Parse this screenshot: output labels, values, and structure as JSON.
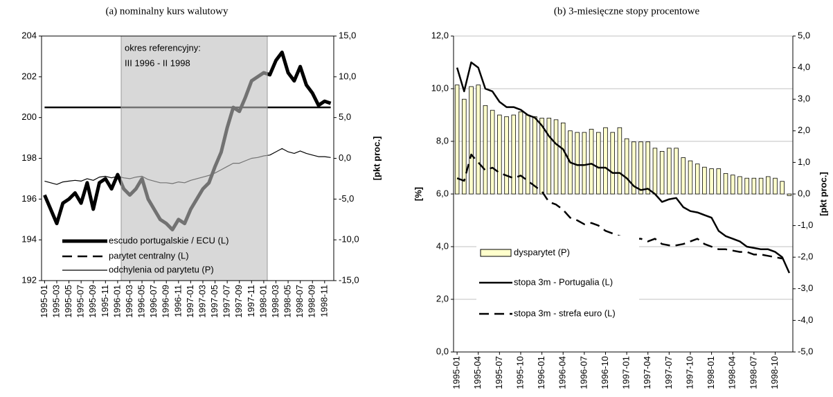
{
  "chart_data": [
    {
      "type": "line",
      "title": "(a) nominalny kurs walutowy",
      "y2_label": "[pkt proc.]",
      "annotations": [
        "okres referencyjny:",
        "III 1996 - II 1998"
      ],
      "categories": [
        "1995-01",
        null,
        "1995-03",
        null,
        "1995-05",
        null,
        "1995-07",
        null,
        "1995-09",
        null,
        "1995-11",
        null,
        "1996-01",
        null,
        "1996-03",
        null,
        "1996-05",
        null,
        "1996-07",
        null,
        "1996-09",
        null,
        "1996-11",
        null,
        "1997-01",
        null,
        "1997-03",
        null,
        "1997-05",
        null,
        "1997-07",
        null,
        "1997-09",
        null,
        "1997-11",
        null,
        "1998-01",
        null,
        "1998-03",
        null,
        "1998-05",
        null,
        "1998-07",
        null,
        "1998-09",
        null,
        "1998-11",
        null
      ],
      "ylim": [
        192,
        204
      ],
      "yticks": [
        192,
        194,
        196,
        198,
        200,
        202,
        204
      ],
      "y2lim": [
        -15,
        15
      ],
      "y2ticks": [
        {
          "value": -15,
          "label": "-15,0"
        },
        {
          "value": -10,
          "label": "-10,0"
        },
        {
          "value": -5,
          "label": "-5,0"
        },
        {
          "value": 0,
          "label": "0,0"
        },
        {
          "value": 5,
          "label": "5,0"
        },
        {
          "value": 10,
          "label": "10,0"
        },
        {
          "value": 15,
          "label": "15,0"
        }
      ],
      "grid": false,
      "legend": "lower left",
      "series": [
        {
          "name": "escudo portugalskie / ECU (L)",
          "color": "#000000",
          "width": 5,
          "dash": false,
          "values": [
            196.2,
            195.5,
            194.8,
            195.8,
            196.0,
            196.3,
            195.8,
            196.8,
            195.5,
            196.8,
            197.0,
            196.5,
            197.2,
            196.5,
            196.2,
            196.5,
            197.0,
            196.0,
            195.5,
            195.0,
            194.8,
            194.5,
            195.0,
            194.8,
            195.5,
            196.0,
            196.5,
            196.8,
            197.6,
            198.3,
            199.5,
            200.5,
            200.3,
            201.0,
            201.8,
            202.0,
            202.2,
            202.1,
            202.8,
            203.2,
            202.2,
            201.8,
            202.5,
            201.6,
            201.2,
            200.6,
            200.8,
            200.7
          ]
        },
        {
          "name": "parytet centralny (L)",
          "color": "#000000",
          "width": 2.5,
          "dash": true,
          "values": [
            200.5,
            200.5,
            200.5,
            200.5,
            200.5,
            200.5,
            200.5,
            200.5,
            200.5,
            200.5,
            200.5,
            200.5,
            200.5,
            200.5,
            200.5,
            200.5,
            200.5,
            200.5,
            200.5,
            200.5,
            200.5,
            200.5,
            200.5,
            200.5,
            200.5,
            200.5,
            200.5,
            200.5,
            200.5,
            200.5,
            200.5,
            200.5,
            200.5,
            200.5,
            200.5,
            200.5,
            200.5,
            200.5,
            200.5,
            200.5,
            200.5,
            200.5,
            200.5,
            200.5,
            200.5,
            200.5,
            200.5,
            200.5
          ]
        },
        {
          "name": "odchylenia od parytetu (P)",
          "color": "#000000",
          "width": 1.2,
          "dash": false,
          "axis": "y2",
          "values": [
            -2.8,
            -3.0,
            -3.2,
            -2.9,
            -2.8,
            -2.7,
            -2.8,
            -2.5,
            -2.7,
            -2.3,
            -2.2,
            -2.4,
            -2.2,
            -2.4,
            -2.5,
            -2.3,
            -2.2,
            -2.6,
            -2.8,
            -3.0,
            -3.0,
            -3.1,
            -2.9,
            -3.0,
            -2.7,
            -2.5,
            -2.3,
            -2.1,
            -1.8,
            -1.4,
            -1.0,
            -0.6,
            -0.6,
            -0.3,
            0.0,
            0.1,
            0.3,
            0.4,
            0.8,
            1.2,
            0.8,
            0.6,
            0.9,
            0.6,
            0.4,
            0.2,
            0.2,
            0.1
          ]
        }
      ]
    },
    {
      "type": "bar-line",
      "title": "(b) 3-miesięczne stopy procentowe",
      "y_label": "[%]",
      "y2_label": "[pkt proc.]",
      "categories": [
        "1995-01",
        null,
        null,
        "1995-04",
        null,
        null,
        "1995-07",
        null,
        null,
        "1995-10",
        null,
        null,
        "1996-01",
        null,
        null,
        "1996-04",
        null,
        null,
        "1996-07",
        null,
        null,
        "1996-10",
        null,
        null,
        "1997-01",
        null,
        null,
        "1997-04",
        null,
        null,
        "1997-07",
        null,
        null,
        "1997-10",
        null,
        null,
        "1998-01",
        null,
        null,
        "1998-04",
        null,
        null,
        "1998-07",
        null,
        null,
        "1998-10",
        null,
        null
      ],
      "ylim": [
        0,
        12
      ],
      "yticks": [
        {
          "value": 0,
          "label": "0,0"
        },
        {
          "value": 2,
          "label": "2,0"
        },
        {
          "value": 4,
          "label": "4,0"
        },
        {
          "value": 6,
          "label": "6,0"
        },
        {
          "value": 8,
          "label": "8,0"
        },
        {
          "value": 10,
          "label": "10,0"
        },
        {
          "value": 12,
          "label": "12,0"
        }
      ],
      "y2lim": [
        -5,
        5
      ],
      "y2ticks": [
        {
          "value": -5,
          "label": "-5,0"
        },
        {
          "value": -4,
          "label": "-4,0"
        },
        {
          "value": -3,
          "label": "-3,0"
        },
        {
          "value": -2,
          "label": "-2,0"
        },
        {
          "value": -1,
          "label": "-1,0"
        },
        {
          "value": 0,
          "label": "0,0"
        },
        {
          "value": 1,
          "label": "1,0"
        },
        {
          "value": 2,
          "label": "2,0"
        },
        {
          "value": 3,
          "label": "3,0"
        },
        {
          "value": 4,
          "label": "4,0"
        },
        {
          "value": 5,
          "label": "5,0"
        }
      ],
      "grid": true,
      "legend": "lower left",
      "series": [
        {
          "name": "dysparytet (P)",
          "type": "bar",
          "color": "#ffffcc",
          "axis": "y2",
          "values": [
            3.45,
            3.0,
            3.4,
            3.45,
            2.8,
            2.65,
            2.5,
            2.45,
            2.5,
            2.6,
            2.5,
            2.45,
            2.4,
            2.4,
            2.35,
            2.25,
            2.0,
            1.95,
            1.95,
            2.05,
            1.95,
            2.1,
            1.95,
            2.1,
            1.75,
            1.65,
            1.65,
            1.65,
            1.45,
            1.35,
            1.45,
            1.45,
            1.15,
            1.05,
            0.95,
            0.85,
            0.8,
            0.8,
            0.65,
            0.6,
            0.55,
            0.5,
            0.5,
            0.5,
            0.55,
            0.5,
            0.4,
            -0.05
          ]
        },
        {
          "name": "stopa 3m - Portugalia (L)",
          "type": "line",
          "color": "#000000",
          "width": 2.5,
          "dash": false,
          "values": [
            10.8,
            9.9,
            11.0,
            10.8,
            10.0,
            9.9,
            9.5,
            9.3,
            9.3,
            9.2,
            9.0,
            8.9,
            8.6,
            8.2,
            7.9,
            7.7,
            7.2,
            7.1,
            7.1,
            7.15,
            7.0,
            7.0,
            6.8,
            6.8,
            6.6,
            6.3,
            6.15,
            6.2,
            6.0,
            5.7,
            5.8,
            5.85,
            5.5,
            5.35,
            5.3,
            5.2,
            5.1,
            4.6,
            4.4,
            4.3,
            4.2,
            4.0,
            3.95,
            3.9,
            3.9,
            3.8,
            3.6,
            3.0
          ]
        },
        {
          "name": "stopa 3m - strefa euro (L)",
          "type": "line",
          "color": "#000000",
          "width": 2.5,
          "dash": true,
          "values": [
            6.6,
            6.5,
            7.5,
            7.2,
            6.9,
            7.0,
            6.8,
            6.7,
            6.6,
            6.7,
            6.5,
            6.3,
            6.1,
            5.7,
            5.6,
            5.4,
            5.1,
            5.0,
            4.85,
            4.9,
            4.8,
            4.6,
            4.5,
            4.4,
            4.35,
            4.3,
            4.3,
            4.2,
            4.3,
            4.1,
            4.05,
            4.05,
            4.1,
            4.2,
            4.3,
            4.1,
            4.0,
            3.9,
            3.9,
            3.85,
            3.8,
            3.8,
            3.7,
            3.7,
            3.65,
            3.6,
            3.55,
            null
          ]
        }
      ]
    }
  ]
}
